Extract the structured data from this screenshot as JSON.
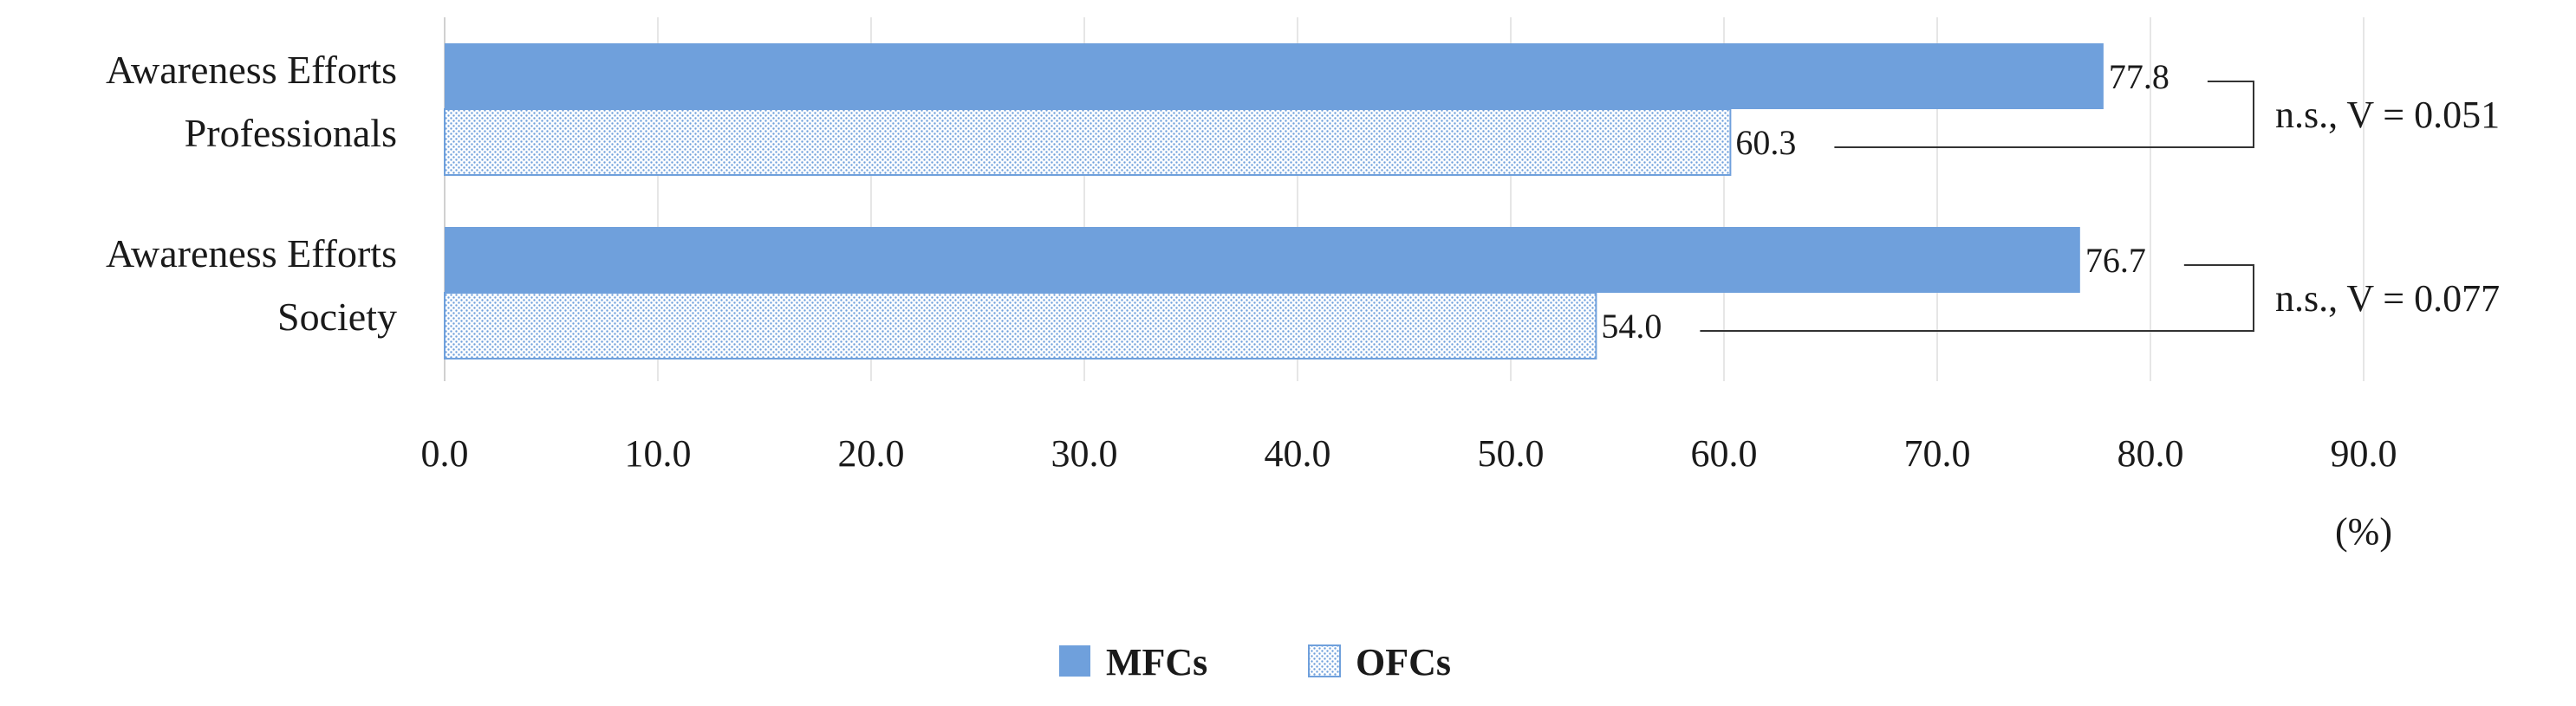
{
  "chart_data": {
    "type": "bar",
    "orientation": "horizontal",
    "categories": [
      "Awareness Efforts Professionals",
      "Awareness Efforts Society"
    ],
    "category_label_lines": [
      [
        "Awareness Efforts",
        "Professionals"
      ],
      [
        "Awareness Efforts",
        "Society"
      ]
    ],
    "series": [
      {
        "name": "MFCs",
        "values": [
          77.8,
          76.7
        ],
        "value_labels": [
          "77.8",
          "76.7"
        ],
        "color": "#6fa0dc",
        "pattern": "solid"
      },
      {
        "name": "OFCs",
        "values": [
          60.3,
          54.0
        ],
        "value_labels": [
          "60.3",
          "54.0"
        ],
        "color": "#6fa0dc",
        "pattern": "dotted"
      }
    ],
    "stat_annotations": [
      "n.s., V = 0.051",
      "n.s., V = 0.077"
    ],
    "xlim": [
      0,
      90
    ],
    "xticks": [
      0,
      10,
      20,
      30,
      40,
      50,
      60,
      70,
      80,
      90
    ],
    "xtick_labels": [
      "0.0",
      "10.0",
      "20.0",
      "30.0",
      "40.0",
      "50.0",
      "60.0",
      "70.0",
      "80.0",
      "90.0"
    ],
    "unit_label": "(%)",
    "grid": "vertical",
    "legend_position": "bottom-center"
  }
}
